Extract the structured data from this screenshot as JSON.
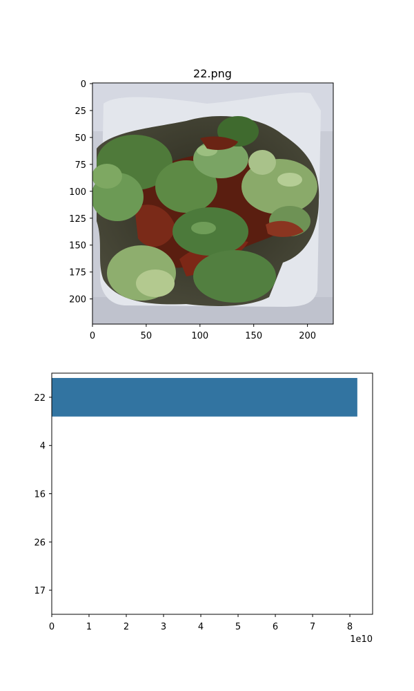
{
  "chart_data": [
    {
      "type": "image",
      "title": "22.png",
      "xlim": [
        0,
        224
      ],
      "ylim": [
        224,
        0
      ],
      "xticks": [
        "0",
        "50",
        "100",
        "150",
        "200"
      ],
      "yticks": [
        "0",
        "25",
        "50",
        "75",
        "100",
        "125",
        "150",
        "175",
        "200"
      ],
      "xtick_values": [
        0,
        50,
        100,
        150,
        200
      ],
      "ytick_values": [
        0,
        25,
        50,
        75,
        100,
        125,
        150,
        175,
        200
      ]
    },
    {
      "type": "bar",
      "orientation": "horizontal",
      "categories": [
        "22",
        "4",
        "16",
        "26",
        "17"
      ],
      "values": [
        82000000000,
        0,
        0,
        0,
        0
      ],
      "color": "#3274a1",
      "xlim": [
        0,
        86100000000
      ],
      "xticks": [
        "0",
        "1",
        "2",
        "3",
        "4",
        "5",
        "6",
        "7",
        "8"
      ],
      "xtick_values": [
        0,
        1,
        2,
        3,
        4,
        5,
        6,
        7,
        8
      ],
      "offset_label": "1e10",
      "xlabel": "",
      "ylabel": ""
    }
  ]
}
